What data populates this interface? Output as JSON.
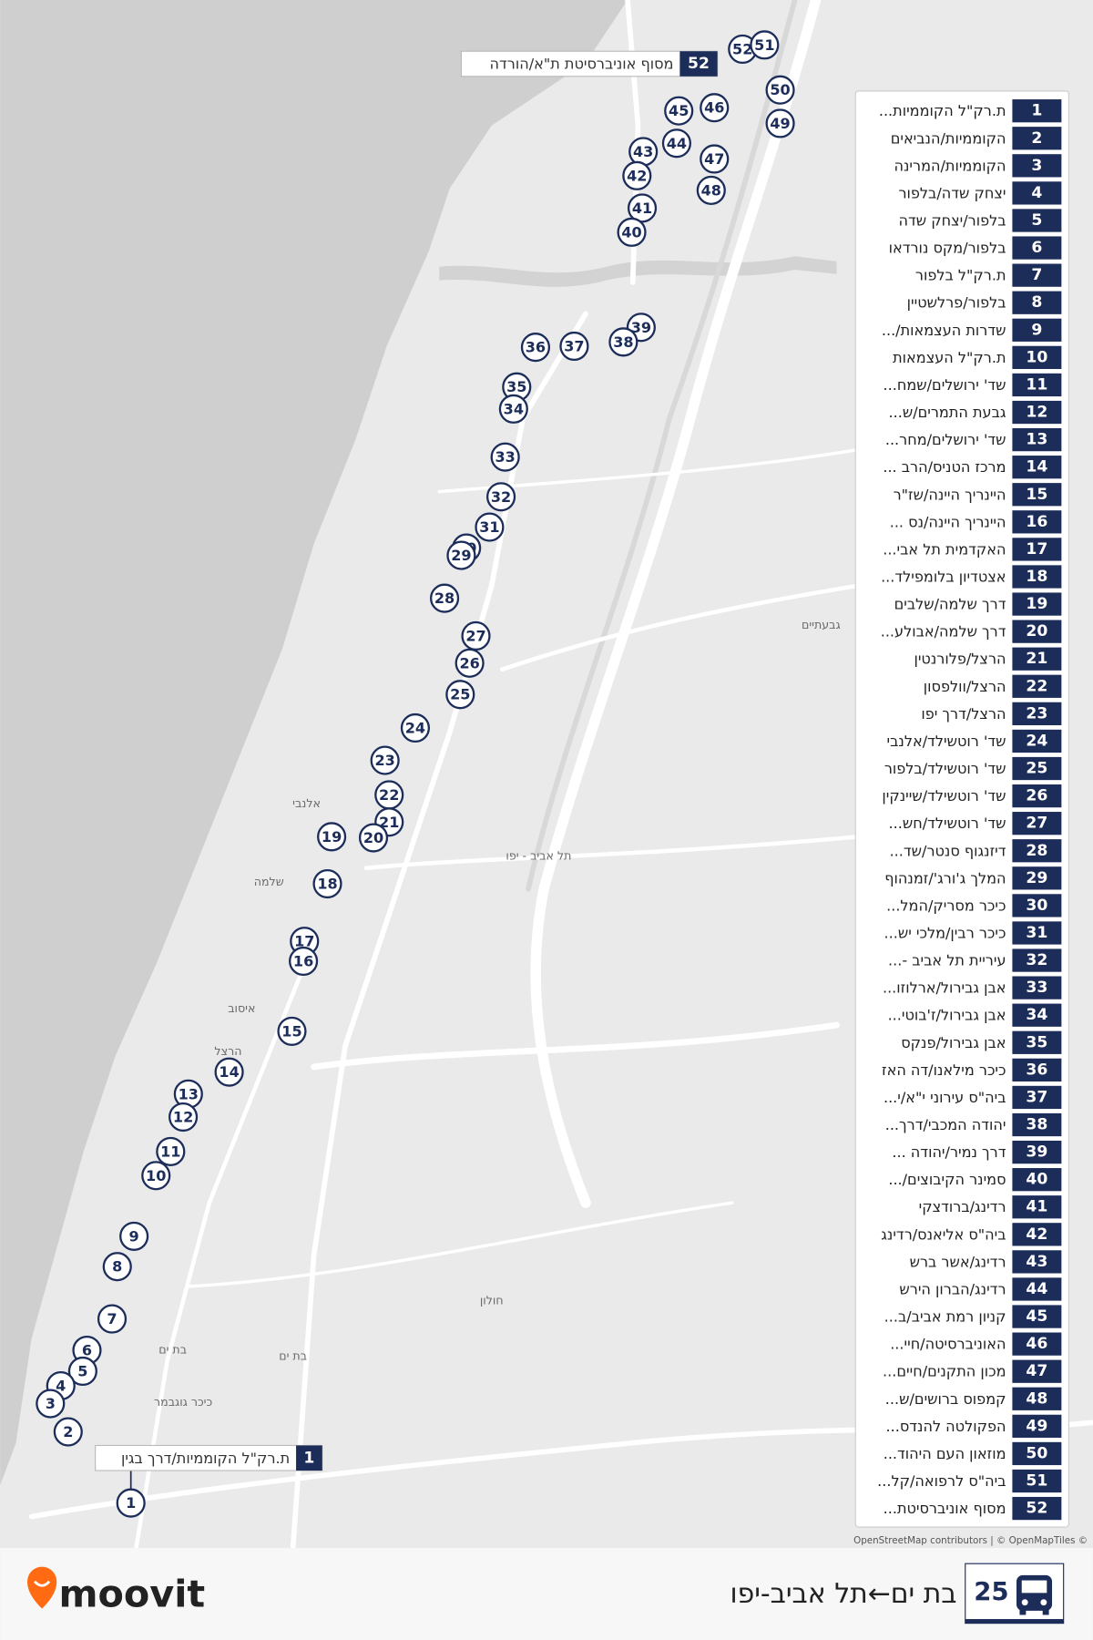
{
  "header": {
    "route_number": "25",
    "title": "בת ים←תל אביב-יפו",
    "brand": "moovit"
  },
  "start_callout": {
    "number": 1,
    "name": "ת.רק\"ל הקוממיות/דרך בגין"
  },
  "end_callout": {
    "number": 52,
    "name": "מסוף אוניברסיטת ת\"א/הורדה"
  },
  "attribution": "OpenStreetMap contributors | © OpenMapTiles ©",
  "map_labels": [
    "בת ים",
    "חולון",
    "תל אביב - יפו",
    "גבעתיים",
    "בת ים",
    "כיכר גוגבמר",
    "אלנבי",
    "שלמה",
    "איסוב",
    "הרצל"
  ],
  "stops": [
    {
      "number": 1,
      "name": "ת.רק\"ל הקוממיות..."
    },
    {
      "number": 2,
      "name": "הקוממיות/הנביאים"
    },
    {
      "number": 3,
      "name": "הקוממיות/המרינה"
    },
    {
      "number": 4,
      "name": "יצחק שדה/בלפור"
    },
    {
      "number": 5,
      "name": "בלפור/יצחק שדה"
    },
    {
      "number": 6,
      "name": "בלפור/מקס נורדאו"
    },
    {
      "number": 7,
      "name": "ת.רק\"ל בלפור"
    },
    {
      "number": 8,
      "name": "בלפור/פרלשטיין"
    },
    {
      "number": 9,
      "name": "שדרות העצמאות/..."
    },
    {
      "number": 10,
      "name": "ת.רק\"ל העצמאות"
    },
    {
      "number": 11,
      "name": "שד' ירושלים/שמח..."
    },
    {
      "number": 12,
      "name": "גבעת התמרים/ש..."
    },
    {
      "number": 13,
      "name": "שד' ירושלים/מחר..."
    },
    {
      "number": 14,
      "name": "מרכז הטניס/הרב ..."
    },
    {
      "number": 15,
      "name": "היינריך היינה/שז\"ר"
    },
    {
      "number": 16,
      "name": "היינריך היינה/נס ..."
    },
    {
      "number": 17,
      "name": "האקדמית תל אבי..."
    },
    {
      "number": 18,
      "name": "אצטדיון בלומפילד..."
    },
    {
      "number": 19,
      "name": "דרך שלמה/שלבים"
    },
    {
      "number": 20,
      "name": "דרך שלמה/אבולע..."
    },
    {
      "number": 21,
      "name": "הרצל/פלורנטין"
    },
    {
      "number": 22,
      "name": "הרצל/וולפסון"
    },
    {
      "number": 23,
      "name": "הרצל/דרך יפו"
    },
    {
      "number": 24,
      "name": "שד' רוטשילד/אלנבי"
    },
    {
      "number": 25,
      "name": "שד' רוטשילד/בלפור"
    },
    {
      "number": 26,
      "name": "שד' רוטשילד/שיינקין"
    },
    {
      "number": 27,
      "name": "שד' רוטשילד/חש..."
    },
    {
      "number": 28,
      "name": "דיזנגוף סנטר/שד..."
    },
    {
      "number": 29,
      "name": "המלך ג'ורג'/זמנהוף"
    },
    {
      "number": 30,
      "name": "כיכר מסריק/המל..."
    },
    {
      "number": 31,
      "name": "כיכר רבין/מלכי יש..."
    },
    {
      "number": 32,
      "name": "עיריית תל אביב -..."
    },
    {
      "number": 33,
      "name": "אבן גבירול/ארלוזו..."
    },
    {
      "number": 34,
      "name": "אבן גבירול/ז'בוטי..."
    },
    {
      "number": 35,
      "name": "אבן גבירול/פנקס"
    },
    {
      "number": 36,
      "name": "כיכר מילאנו/דה האז"
    },
    {
      "number": 37,
      "name": "ביה\"ס עירוני י\"א/י..."
    },
    {
      "number": 38,
      "name": "יהודה המכבי/דרך..."
    },
    {
      "number": 39,
      "name": "דרך נמיר/יהודה ..."
    },
    {
      "number": 40,
      "name": "סמינר הקיבוצים/..."
    },
    {
      "number": 41,
      "name": "רדינג/ברודצקי"
    },
    {
      "number": 42,
      "name": "ביה\"ס אליאנס/רדינג"
    },
    {
      "number": 43,
      "name": "רדינג/אשר ברש"
    },
    {
      "number": 44,
      "name": "רדינג/הברון הירש"
    },
    {
      "number": 45,
      "name": "קניון רמת אביב/ב..."
    },
    {
      "number": 46,
      "name": "האוניברסיטה/חיי..."
    },
    {
      "number": 47,
      "name": "מכון התקנים/חיים..."
    },
    {
      "number": 48,
      "name": "קמפוס ברושים/ש..."
    },
    {
      "number": 49,
      "name": "הפקולטה להנדס..."
    },
    {
      "number": 50,
      "name": "מוזאון העם היהוד..."
    },
    {
      "number": 51,
      "name": "ביה\"ס לרפואה/קל..."
    },
    {
      "number": 52,
      "name": "מסוף אוניברסיטת..."
    }
  ]
}
